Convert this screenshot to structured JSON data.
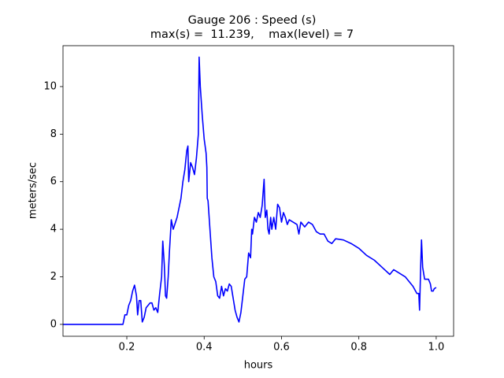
{
  "chart_data": {
    "type": "line",
    "title": "Gauge 206 : Speed (s)",
    "subtitle": "max(s) =  11.239,    max(level) = 7",
    "xlabel": "hours",
    "ylabel": "meters/sec",
    "xlim": [
      0.035,
      1.045
    ],
    "ylim": [
      -0.5,
      11.72
    ],
    "xticks": [
      0.2,
      0.4,
      0.6,
      0.8,
      {
        "value": 1,
        "label": "1.0"
      }
    ],
    "yticks": [
      0,
      2,
      4,
      6,
      8,
      10
    ],
    "grid": false,
    "series": [
      {
        "color": "#0000ff",
        "x": [
          0.035,
          0.19,
          0.195,
          0.2,
          0.205,
          0.21,
          0.215,
          0.22,
          0.225,
          0.228,
          0.232,
          0.236,
          0.24,
          0.245,
          0.25,
          0.26,
          0.265,
          0.27,
          0.275,
          0.28,
          0.285,
          0.29,
          0.293,
          0.297,
          0.3,
          0.303,
          0.307,
          0.31,
          0.315,
          0.32,
          0.33,
          0.34,
          0.345,
          0.35,
          0.355,
          0.358,
          0.36,
          0.365,
          0.37,
          0.375,
          0.38,
          0.385,
          0.387,
          0.39,
          0.395,
          0.4,
          0.405,
          0.407,
          0.408,
          0.41,
          0.415,
          0.42,
          0.425,
          0.43,
          0.435,
          0.44,
          0.445,
          0.45,
          0.455,
          0.46,
          0.465,
          0.47,
          0.475,
          0.48,
          0.485,
          0.49,
          0.495,
          0.5,
          0.505,
          0.51,
          0.515,
          0.52,
          0.523,
          0.525,
          0.53,
          0.535,
          0.54,
          0.545,
          0.55,
          0.555,
          0.558,
          0.562,
          0.565,
          0.568,
          0.572,
          0.575,
          0.58,
          0.585,
          0.59,
          0.595,
          0.6,
          0.605,
          0.61,
          0.615,
          0.62,
          0.63,
          0.64,
          0.645,
          0.65,
          0.66,
          0.67,
          0.68,
          0.69,
          0.7,
          0.71,
          0.72,
          0.73,
          0.74,
          0.76,
          0.78,
          0.8,
          0.82,
          0.84,
          0.86,
          0.88,
          0.89,
          0.9,
          0.92,
          0.94,
          0.95,
          0.955,
          0.957,
          0.96,
          0.962,
          0.965,
          0.97,
          0.98,
          0.985,
          0.988,
          0.992,
          0.995,
          1.0
        ],
        "values": [
          0,
          0,
          0.4,
          0.4,
          0.8,
          1.0,
          1.4,
          1.65,
          1.2,
          0.4,
          1.0,
          1.0,
          0.1,
          0.3,
          0.7,
          0.9,
          0.9,
          0.6,
          0.7,
          0.5,
          1.3,
          2.0,
          3.5,
          2.5,
          1.2,
          1.1,
          2.0,
          3.0,
          4.4,
          4.0,
          4.5,
          5.3,
          6.0,
          6.5,
          7.3,
          7.5,
          6.0,
          6.8,
          6.6,
          6.3,
          7.0,
          8.0,
          11.24,
          10,
          8.8,
          7.8,
          7.2,
          6.6,
          5.3,
          5.2,
          4.0,
          2.8,
          2.0,
          1.8,
          1.2,
          1.1,
          1.6,
          1.2,
          1.5,
          1.4,
          1.7,
          1.6,
          1.1,
          0.6,
          0.3,
          0.1,
          0.5,
          1.2,
          1.9,
          2.0,
          3.0,
          2.8,
          4.0,
          3.8,
          4.5,
          4.3,
          4.7,
          4.5,
          5.0,
          6.1,
          4.5,
          4.8,
          4.0,
          3.8,
          4.5,
          4.0,
          4.5,
          4.0,
          5.05,
          4.9,
          4.3,
          4.7,
          4.5,
          4.2,
          4.4,
          4.3,
          4.2,
          3.8,
          4.3,
          4.1,
          4.3,
          4.2,
          3.9,
          3.8,
          3.8,
          3.5,
          3.4,
          3.6,
          3.55,
          3.4,
          3.2,
          2.9,
          2.7,
          2.4,
          2.1,
          2.3,
          2.2,
          2.0,
          1.6,
          1.3,
          1.3,
          0.6,
          2.5,
          3.55,
          2.4,
          1.9,
          1.9,
          1.7,
          1.4,
          1.4,
          1.5,
          1.55
        ]
      }
    ]
  }
}
